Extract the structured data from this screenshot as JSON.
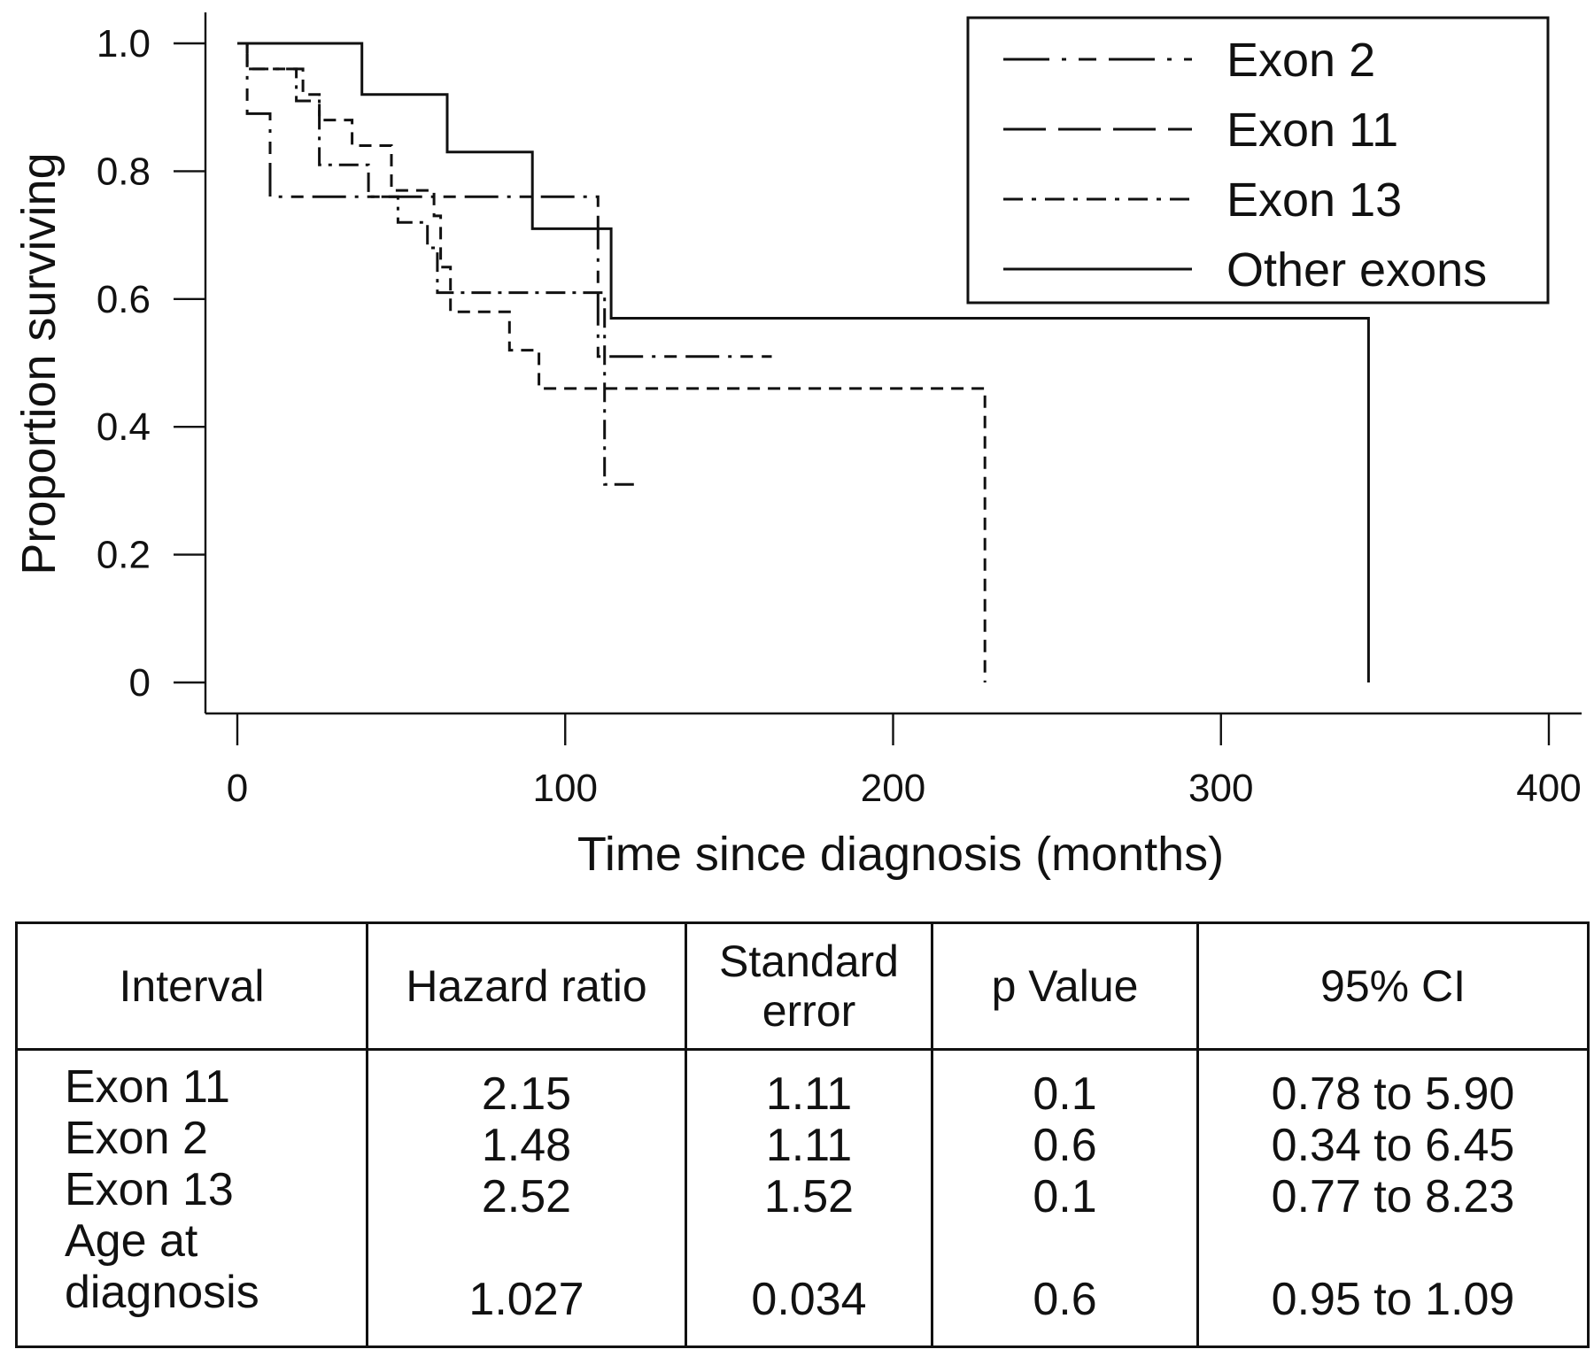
{
  "chart_data": {
    "type": "line",
    "subtype": "step (Kaplan-Meier survival curves)",
    "xlabel": "Time since diagnosis (months)",
    "ylabel": "Proportion surviving",
    "xlim": [
      0,
      400
    ],
    "ylim": [
      0,
      1.0
    ],
    "x_ticks": [
      0,
      100,
      200,
      300,
      400
    ],
    "x_tick_labels": [
      "0",
      "100",
      "200",
      "300",
      "400"
    ],
    "y_ticks": [
      0,
      0.2,
      0.4,
      0.6,
      0.8,
      1.0
    ],
    "y_tick_labels": [
      "0",
      "0.2",
      "0.4",
      "0.6",
      "0.8",
      "1.0"
    ],
    "grid": false,
    "legend_position": "top-right",
    "series": [
      {
        "name": "Exon 2",
        "style": "long-dash-dot-short-dash",
        "points": [
          [
            0,
            1.0
          ],
          [
            3,
            1.0
          ],
          [
            3,
            0.89
          ],
          [
            10,
            0.89
          ],
          [
            10,
            0.76
          ],
          [
            110,
            0.76
          ],
          [
            110,
            0.51
          ],
          [
            163,
            0.51
          ]
        ]
      },
      {
        "name": "Exon 11",
        "style": "dashed",
        "points": [
          [
            0,
            1.0
          ],
          [
            3,
            1.0
          ],
          [
            3,
            0.96
          ],
          [
            20,
            0.96
          ],
          [
            20,
            0.92
          ],
          [
            25,
            0.92
          ],
          [
            25,
            0.88
          ],
          [
            35,
            0.88
          ],
          [
            35,
            0.84
          ],
          [
            47,
            0.84
          ],
          [
            47,
            0.77
          ],
          [
            60,
            0.77
          ],
          [
            60,
            0.73
          ],
          [
            62,
            0.73
          ],
          [
            62,
            0.65
          ],
          [
            65,
            0.65
          ],
          [
            65,
            0.58
          ],
          [
            83,
            0.58
          ],
          [
            83,
            0.52
          ],
          [
            92,
            0.52
          ],
          [
            92,
            0.46
          ],
          [
            228,
            0.46
          ],
          [
            228,
            0.0
          ]
        ]
      },
      {
        "name": "Exon 13",
        "style": "dash-dot",
        "points": [
          [
            0,
            1.0
          ],
          [
            3,
            1.0
          ],
          [
            3,
            0.96
          ],
          [
            18,
            0.96
          ],
          [
            18,
            0.91
          ],
          [
            25,
            0.91
          ],
          [
            25,
            0.81
          ],
          [
            40,
            0.81
          ],
          [
            40,
            0.76
          ],
          [
            49,
            0.76
          ],
          [
            49,
            0.72
          ],
          [
            58,
            0.72
          ],
          [
            58,
            0.68
          ],
          [
            61,
            0.68
          ],
          [
            61,
            0.61
          ],
          [
            112,
            0.61
          ],
          [
            112,
            0.31
          ],
          [
            121,
            0.31
          ]
        ]
      },
      {
        "name": "Other exons",
        "style": "solid",
        "points": [
          [
            0,
            1.0
          ],
          [
            38,
            1.0
          ],
          [
            38,
            0.92
          ],
          [
            64,
            0.92
          ],
          [
            64,
            0.83
          ],
          [
            90,
            0.83
          ],
          [
            90,
            0.71
          ],
          [
            114,
            0.71
          ],
          [
            114,
            0.57
          ],
          [
            345,
            0.57
          ],
          [
            345,
            0.0
          ]
        ]
      }
    ]
  },
  "table": {
    "headers": [
      [
        "Interval"
      ],
      [
        "Hazard ratio"
      ],
      [
        "Standard",
        "error"
      ],
      [
        "p Value"
      ],
      [
        "95% CI"
      ]
    ],
    "rows": [
      {
        "label": [
          "Exon 11"
        ],
        "hazard_ratio": "2.15",
        "standard_error": "1.11",
        "p_value": "0.1",
        "ci": "0.78 to 5.90"
      },
      {
        "label": [
          "Exon 2"
        ],
        "hazard_ratio": "1.48",
        "standard_error": "1.11",
        "p_value": "0.6",
        "ci": "0.34 to 6.45"
      },
      {
        "label": [
          "Exon 13"
        ],
        "hazard_ratio": "2.52",
        "standard_error": "1.52",
        "p_value": "0.1",
        "ci": "0.77 to 8.23"
      },
      {
        "label": [
          "Age at",
          "diagnosis"
        ],
        "hazard_ratio": "1.027",
        "standard_error": "0.034",
        "p_value": "0.6",
        "ci": "0.95 to 1.09"
      }
    ]
  }
}
